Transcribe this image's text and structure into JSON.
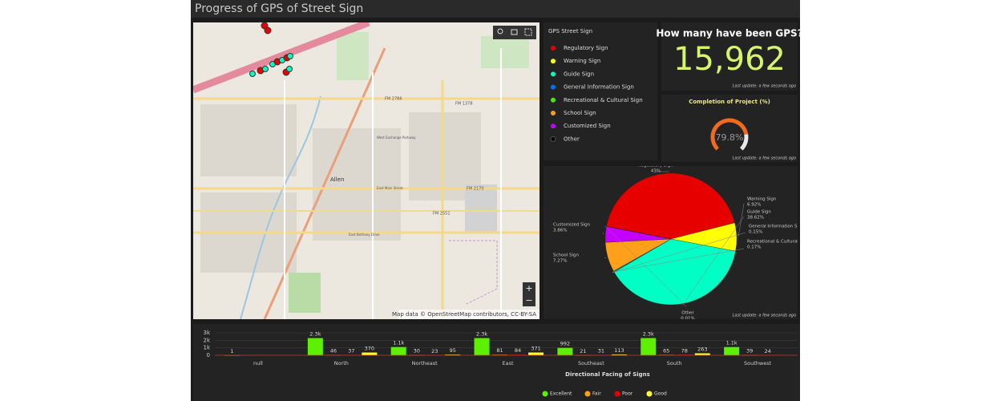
{
  "header": {
    "title": "Progress of GPS of Street Sign"
  },
  "map": {
    "labels": [
      "Allen",
      "FM 2786",
      "FM 1378",
      "FM 2170",
      "FM 2551",
      "East Bethany Drive",
      "West Exchange Parkway",
      "East Main Street"
    ],
    "attribution": "Map data © OpenStreetMap contributors, CC-BY-SA",
    "zoom_in": "+",
    "zoom_out": "−"
  },
  "indicator": {
    "title": "How many have been GPS?",
    "value": "15,962",
    "footnote": "Last update: a few seconds ago"
  },
  "gauge": {
    "title": "Completion of Project (%)",
    "value": 79.8,
    "value_label": "79.8%",
    "range": [
      0,
      100
    ],
    "footnote": "Last update: a few seconds ago"
  },
  "chart_data": [
    {
      "type": "pie",
      "legend_title": "GPS Street Sign",
      "categories": [
        "Regulatory Sign",
        "Warning Sign",
        "Guide Sign",
        "General Information Sign",
        "Recreational & Cultural Sign",
        "School Sign",
        "Customized Sign",
        "Other"
      ],
      "values": [
        43,
        6.92,
        38.62,
        0.15,
        0.17,
        7.27,
        3.86,
        0.01
      ],
      "value_labels": [
        "43%",
        "6.92%",
        "38.62%",
        "0.15%",
        "0.17%",
        "7.27%",
        "3.86%",
        "0.01%"
      ],
      "colors": [
        "#e60000",
        "#ffff00",
        "#00ffc5",
        "#0070ff",
        "#4ce600",
        "#ff9f1a",
        "#c500ff",
        "#000000"
      ],
      "footnote": "Last update: a few seconds ago"
    },
    {
      "type": "bar",
      "x_label": "Directional Facing of Signs",
      "categories": [
        "null",
        "North",
        "Northeast",
        "East",
        "Southeast",
        "South",
        "Southwest"
      ],
      "series": [
        {
          "name": "Excellent",
          "color": "#5ef000",
          "values": [
            1,
            2300,
            1100,
            2300,
            992,
            2300,
            1100
          ],
          "value_labels": [
            "1",
            "2.3k",
            "1.1k",
            "2.3k",
            "992",
            "2.3k",
            "1.1k"
          ]
        },
        {
          "name": "Fair",
          "color": "#ff9f1a",
          "values": [
            null,
            46,
            30,
            81,
            21,
            65,
            39
          ]
        },
        {
          "name": "Poor",
          "color": "#e60000",
          "values": [
            null,
            37,
            23,
            84,
            31,
            78,
            24
          ]
        },
        {
          "name": "Good",
          "color": "#ffff33",
          "values": [
            null,
            370,
            95,
            371,
            113,
            263,
            null
          ]
        }
      ],
      "ylim": [
        0,
        3000
      ],
      "yticks": [
        0,
        {
          "value": 1000,
          "label": "1k"
        },
        {
          "value": 2000,
          "label": "2k"
        },
        {
          "value": 3000,
          "label": "3k"
        }
      ],
      "grid": true
    }
  ]
}
